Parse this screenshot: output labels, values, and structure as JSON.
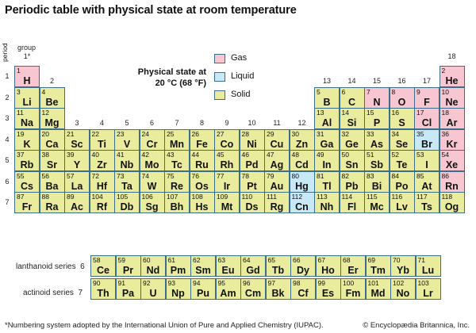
{
  "title": "Periodic table with physical state at room temperature",
  "group_label": "group",
  "period_label": "period",
  "legend": {
    "title_line1": "Physical state at",
    "title_line2": "20 °C (68 °F)",
    "items": [
      {
        "state": "gas",
        "label": "Gas"
      },
      {
        "state": "liquid",
        "label": "Liquid"
      },
      {
        "state": "solid",
        "label": "Solid"
      }
    ]
  },
  "colors": {
    "solid": "#e8ec9c",
    "gas": "#f7c6d1",
    "liquid": "#c8e8f6",
    "border": "#3c6e8c"
  },
  "groups": [
    {
      "n": 1,
      "label": "1*"
    },
    {
      "n": 2,
      "label": "2"
    },
    {
      "n": 3,
      "label": "3"
    },
    {
      "n": 4,
      "label": "4"
    },
    {
      "n": 5,
      "label": "5"
    },
    {
      "n": 6,
      "label": "6"
    },
    {
      "n": 7,
      "label": "7"
    },
    {
      "n": 8,
      "label": "8"
    },
    {
      "n": 9,
      "label": "9"
    },
    {
      "n": 10,
      "label": "10"
    },
    {
      "n": 11,
      "label": "11"
    },
    {
      "n": 12,
      "label": "12"
    },
    {
      "n": 13,
      "label": "13"
    },
    {
      "n": 14,
      "label": "14"
    },
    {
      "n": 15,
      "label": "15"
    },
    {
      "n": 16,
      "label": "16"
    },
    {
      "n": 17,
      "label": "17"
    },
    {
      "n": 18,
      "label": "18"
    }
  ],
  "periods": [
    "1",
    "2",
    "3",
    "4",
    "5",
    "6",
    "7"
  ],
  "series": {
    "lanthanoid_label": "lanthanoid series",
    "lanthanoid_period": "6",
    "actinoid_label": "actinoid series",
    "actinoid_period": "7"
  },
  "elements": [
    {
      "z": 1,
      "sym": "H",
      "p": 1,
      "g": 1,
      "s": "gas"
    },
    {
      "z": 2,
      "sym": "He",
      "p": 1,
      "g": 18,
      "s": "gas"
    },
    {
      "z": 3,
      "sym": "Li",
      "p": 2,
      "g": 1,
      "s": "solid"
    },
    {
      "z": 4,
      "sym": "Be",
      "p": 2,
      "g": 2,
      "s": "solid"
    },
    {
      "z": 5,
      "sym": "B",
      "p": 2,
      "g": 13,
      "s": "solid"
    },
    {
      "z": 6,
      "sym": "C",
      "p": 2,
      "g": 14,
      "s": "solid"
    },
    {
      "z": 7,
      "sym": "N",
      "p": 2,
      "g": 15,
      "s": "gas"
    },
    {
      "z": 8,
      "sym": "O",
      "p": 2,
      "g": 16,
      "s": "gas"
    },
    {
      "z": 9,
      "sym": "F",
      "p": 2,
      "g": 17,
      "s": "gas"
    },
    {
      "z": 10,
      "sym": "Ne",
      "p": 2,
      "g": 18,
      "s": "gas"
    },
    {
      "z": 11,
      "sym": "Na",
      "p": 3,
      "g": 1,
      "s": "solid"
    },
    {
      "z": 12,
      "sym": "Mg",
      "p": 3,
      "g": 2,
      "s": "solid"
    },
    {
      "z": 13,
      "sym": "Al",
      "p": 3,
      "g": 13,
      "s": "solid"
    },
    {
      "z": 14,
      "sym": "Si",
      "p": 3,
      "g": 14,
      "s": "solid"
    },
    {
      "z": 15,
      "sym": "P",
      "p": 3,
      "g": 15,
      "s": "solid"
    },
    {
      "z": 16,
      "sym": "S",
      "p": 3,
      "g": 16,
      "s": "solid"
    },
    {
      "z": 17,
      "sym": "Cl",
      "p": 3,
      "g": 17,
      "s": "gas"
    },
    {
      "z": 18,
      "sym": "Ar",
      "p": 3,
      "g": 18,
      "s": "gas"
    },
    {
      "z": 19,
      "sym": "K",
      "p": 4,
      "g": 1,
      "s": "solid"
    },
    {
      "z": 20,
      "sym": "Ca",
      "p": 4,
      "g": 2,
      "s": "solid"
    },
    {
      "z": 21,
      "sym": "Sc",
      "p": 4,
      "g": 3,
      "s": "solid"
    },
    {
      "z": 22,
      "sym": "Ti",
      "p": 4,
      "g": 4,
      "s": "solid"
    },
    {
      "z": 23,
      "sym": "V",
      "p": 4,
      "g": 5,
      "s": "solid"
    },
    {
      "z": 24,
      "sym": "Cr",
      "p": 4,
      "g": 6,
      "s": "solid"
    },
    {
      "z": 25,
      "sym": "Mn",
      "p": 4,
      "g": 7,
      "s": "solid"
    },
    {
      "z": 26,
      "sym": "Fe",
      "p": 4,
      "g": 8,
      "s": "solid"
    },
    {
      "z": 27,
      "sym": "Co",
      "p": 4,
      "g": 9,
      "s": "solid"
    },
    {
      "z": 28,
      "sym": "Ni",
      "p": 4,
      "g": 10,
      "s": "solid"
    },
    {
      "z": 29,
      "sym": "Cu",
      "p": 4,
      "g": 11,
      "s": "solid"
    },
    {
      "z": 30,
      "sym": "Zn",
      "p": 4,
      "g": 12,
      "s": "solid"
    },
    {
      "z": 31,
      "sym": "Ga",
      "p": 4,
      "g": 13,
      "s": "solid"
    },
    {
      "z": 32,
      "sym": "Ge",
      "p": 4,
      "g": 14,
      "s": "solid"
    },
    {
      "z": 33,
      "sym": "As",
      "p": 4,
      "g": 15,
      "s": "solid"
    },
    {
      "z": 34,
      "sym": "Se",
      "p": 4,
      "g": 16,
      "s": "solid"
    },
    {
      "z": 35,
      "sym": "Br",
      "p": 4,
      "g": 17,
      "s": "liquid"
    },
    {
      "z": 36,
      "sym": "Kr",
      "p": 4,
      "g": 18,
      "s": "gas"
    },
    {
      "z": 37,
      "sym": "Rb",
      "p": 5,
      "g": 1,
      "s": "solid"
    },
    {
      "z": 38,
      "sym": "Sr",
      "p": 5,
      "g": 2,
      "s": "solid"
    },
    {
      "z": 39,
      "sym": "Y",
      "p": 5,
      "g": 3,
      "s": "solid"
    },
    {
      "z": 40,
      "sym": "Zr",
      "p": 5,
      "g": 4,
      "s": "solid"
    },
    {
      "z": 41,
      "sym": "Nb",
      "p": 5,
      "g": 5,
      "s": "solid"
    },
    {
      "z": 42,
      "sym": "Mo",
      "p": 5,
      "g": 6,
      "s": "solid"
    },
    {
      "z": 43,
      "sym": "Tc",
      "p": 5,
      "g": 7,
      "s": "solid"
    },
    {
      "z": 44,
      "sym": "Ru",
      "p": 5,
      "g": 8,
      "s": "solid"
    },
    {
      "z": 45,
      "sym": "Rh",
      "p": 5,
      "g": 9,
      "s": "solid"
    },
    {
      "z": 46,
      "sym": "Pd",
      "p": 5,
      "g": 10,
      "s": "solid"
    },
    {
      "z": 47,
      "sym": "Ag",
      "p": 5,
      "g": 11,
      "s": "solid"
    },
    {
      "z": 48,
      "sym": "Cd",
      "p": 5,
      "g": 12,
      "s": "solid"
    },
    {
      "z": 49,
      "sym": "In",
      "p": 5,
      "g": 13,
      "s": "solid"
    },
    {
      "z": 50,
      "sym": "Sn",
      "p": 5,
      "g": 14,
      "s": "solid"
    },
    {
      "z": 51,
      "sym": "Sb",
      "p": 5,
      "g": 15,
      "s": "solid"
    },
    {
      "z": 52,
      "sym": "Te",
      "p": 5,
      "g": 16,
      "s": "solid"
    },
    {
      "z": 53,
      "sym": "I",
      "p": 5,
      "g": 17,
      "s": "solid"
    },
    {
      "z": 54,
      "sym": "Xe",
      "p": 5,
      "g": 18,
      "s": "gas"
    },
    {
      "z": 55,
      "sym": "Cs",
      "p": 6,
      "g": 1,
      "s": "solid"
    },
    {
      "z": 56,
      "sym": "Ba",
      "p": 6,
      "g": 2,
      "s": "solid"
    },
    {
      "z": 57,
      "sym": "La",
      "p": 6,
      "g": 3,
      "s": "solid"
    },
    {
      "z": 72,
      "sym": "Hf",
      "p": 6,
      "g": 4,
      "s": "solid"
    },
    {
      "z": 73,
      "sym": "Ta",
      "p": 6,
      "g": 5,
      "s": "solid"
    },
    {
      "z": 74,
      "sym": "W",
      "p": 6,
      "g": 6,
      "s": "solid"
    },
    {
      "z": 75,
      "sym": "Re",
      "p": 6,
      "g": 7,
      "s": "solid"
    },
    {
      "z": 76,
      "sym": "Os",
      "p": 6,
      "g": 8,
      "s": "solid"
    },
    {
      "z": 77,
      "sym": "Ir",
      "p": 6,
      "g": 9,
      "s": "solid"
    },
    {
      "z": 78,
      "sym": "Pt",
      "p": 6,
      "g": 10,
      "s": "solid"
    },
    {
      "z": 79,
      "sym": "Au",
      "p": 6,
      "g": 11,
      "s": "solid"
    },
    {
      "z": 80,
      "sym": "Hg",
      "p": 6,
      "g": 12,
      "s": "liquid"
    },
    {
      "z": 81,
      "sym": "Tl",
      "p": 6,
      "g": 13,
      "s": "solid"
    },
    {
      "z": 82,
      "sym": "Pb",
      "p": 6,
      "g": 14,
      "s": "solid"
    },
    {
      "z": 83,
      "sym": "Bi",
      "p": 6,
      "g": 15,
      "s": "solid"
    },
    {
      "z": 84,
      "sym": "Po",
      "p": 6,
      "g": 16,
      "s": "solid"
    },
    {
      "z": 85,
      "sym": "At",
      "p": 6,
      "g": 17,
      "s": "solid"
    },
    {
      "z": 86,
      "sym": "Rn",
      "p": 6,
      "g": 18,
      "s": "gas"
    },
    {
      "z": 87,
      "sym": "Fr",
      "p": 7,
      "g": 1,
      "s": "solid"
    },
    {
      "z": 88,
      "sym": "Ra",
      "p": 7,
      "g": 2,
      "s": "solid"
    },
    {
      "z": 89,
      "sym": "Ac",
      "p": 7,
      "g": 3,
      "s": "solid"
    },
    {
      "z": 104,
      "sym": "Rf",
      "p": 7,
      "g": 4,
      "s": "solid"
    },
    {
      "z": 105,
      "sym": "Db",
      "p": 7,
      "g": 5,
      "s": "solid"
    },
    {
      "z": 106,
      "sym": "Sg",
      "p": 7,
      "g": 6,
      "s": "solid"
    },
    {
      "z": 107,
      "sym": "Bh",
      "p": 7,
      "g": 7,
      "s": "solid"
    },
    {
      "z": 108,
      "sym": "Hs",
      "p": 7,
      "g": 8,
      "s": "solid"
    },
    {
      "z": 109,
      "sym": "Mt",
      "p": 7,
      "g": 9,
      "s": "solid"
    },
    {
      "z": 110,
      "sym": "Ds",
      "p": 7,
      "g": 10,
      "s": "solid"
    },
    {
      "z": 111,
      "sym": "Rg",
      "p": 7,
      "g": 11,
      "s": "solid"
    },
    {
      "z": 112,
      "sym": "Cn",
      "p": 7,
      "g": 12,
      "s": "liquid"
    },
    {
      "z": 113,
      "sym": "Nh",
      "p": 7,
      "g": 13,
      "s": "solid"
    },
    {
      "z": 114,
      "sym": "Fl",
      "p": 7,
      "g": 14,
      "s": "solid"
    },
    {
      "z": 115,
      "sym": "Mc",
      "p": 7,
      "g": 15,
      "s": "solid"
    },
    {
      "z": 116,
      "sym": "Lv",
      "p": 7,
      "g": 16,
      "s": "solid"
    },
    {
      "z": 117,
      "sym": "Ts",
      "p": 7,
      "g": 17,
      "s": "solid"
    },
    {
      "z": 118,
      "sym": "Og",
      "p": 7,
      "g": 18,
      "s": "solid"
    }
  ],
  "lanthanoids": [
    {
      "z": 58,
      "sym": "Ce",
      "s": "solid"
    },
    {
      "z": 59,
      "sym": "Pr",
      "s": "solid"
    },
    {
      "z": 60,
      "sym": "Nd",
      "s": "solid"
    },
    {
      "z": 61,
      "sym": "Pm",
      "s": "solid"
    },
    {
      "z": 62,
      "sym": "Sm",
      "s": "solid"
    },
    {
      "z": 63,
      "sym": "Eu",
      "s": "solid"
    },
    {
      "z": 64,
      "sym": "Gd",
      "s": "solid"
    },
    {
      "z": 65,
      "sym": "Tb",
      "s": "solid"
    },
    {
      "z": 66,
      "sym": "Dy",
      "s": "solid"
    },
    {
      "z": 67,
      "sym": "Ho",
      "s": "solid"
    },
    {
      "z": 68,
      "sym": "Er",
      "s": "solid"
    },
    {
      "z": 69,
      "sym": "Tm",
      "s": "solid"
    },
    {
      "z": 70,
      "sym": "Yb",
      "s": "solid"
    },
    {
      "z": 71,
      "sym": "Lu",
      "s": "solid"
    }
  ],
  "actinoids": [
    {
      "z": 90,
      "sym": "Th",
      "s": "solid"
    },
    {
      "z": 91,
      "sym": "Pa",
      "s": "solid"
    },
    {
      "z": 92,
      "sym": "U",
      "s": "solid"
    },
    {
      "z": 93,
      "sym": "Np",
      "s": "solid"
    },
    {
      "z": 94,
      "sym": "Pu",
      "s": "solid"
    },
    {
      "z": 95,
      "sym": "Am",
      "s": "solid"
    },
    {
      "z": 96,
      "sym": "Cm",
      "s": "solid"
    },
    {
      "z": 97,
      "sym": "Bk",
      "s": "solid"
    },
    {
      "z": 98,
      "sym": "Cf",
      "s": "solid"
    },
    {
      "z": 99,
      "sym": "Es",
      "s": "solid"
    },
    {
      "z": 100,
      "sym": "Fm",
      "s": "solid"
    },
    {
      "z": 101,
      "sym": "Md",
      "s": "solid"
    },
    {
      "z": 102,
      "sym": "No",
      "s": "solid"
    },
    {
      "z": 103,
      "sym": "Lr",
      "s": "solid"
    }
  ],
  "footer": {
    "note": "*Numbering system adopted by the International Union of Pure and Applied Chemistry (IUPAC).",
    "copyright": "© Encyclopædia Britannica, Inc."
  }
}
